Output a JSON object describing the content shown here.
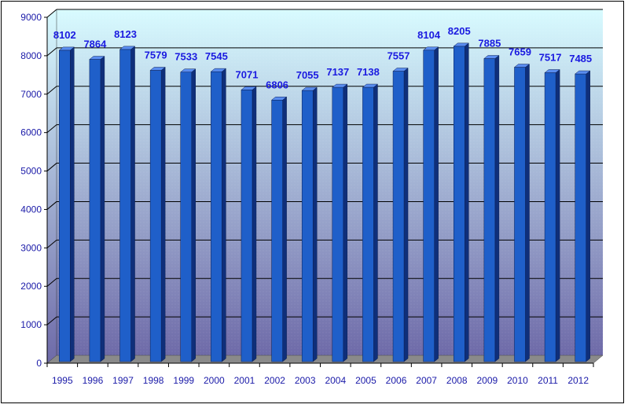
{
  "chart_data": {
    "type": "bar",
    "style": "3d-column",
    "categories": [
      "1995",
      "1996",
      "1997",
      "1998",
      "1999",
      "2000",
      "2001",
      "2002",
      "2003",
      "2004",
      "2005",
      "2006",
      "2007",
      "2008",
      "2009",
      "2010",
      "2011",
      "2012"
    ],
    "values": [
      8102,
      7864,
      8123,
      7579,
      7533,
      7545,
      7071,
      6806,
      7055,
      7137,
      7138,
      7557,
      8104,
      8205,
      7885,
      7659,
      7517,
      7485
    ],
    "ylim": [
      0,
      9000
    ],
    "yticks": [
      0,
      1000,
      2000,
      3000,
      4000,
      5000,
      6000,
      7000,
      8000,
      9000
    ],
    "grid": true,
    "legend": "none",
    "colors": {
      "bar_front": "#1f5fc9",
      "bar_side": "#0f2f7a",
      "bar_top": "#5a8df0",
      "plot_top": "#d8fbff",
      "plot_bottom": "#6e6aa8",
      "floor": "#8a8a8a",
      "gridline": "#000000",
      "label": "#1a1ae0",
      "tick_label": "#1a1aa8"
    }
  }
}
